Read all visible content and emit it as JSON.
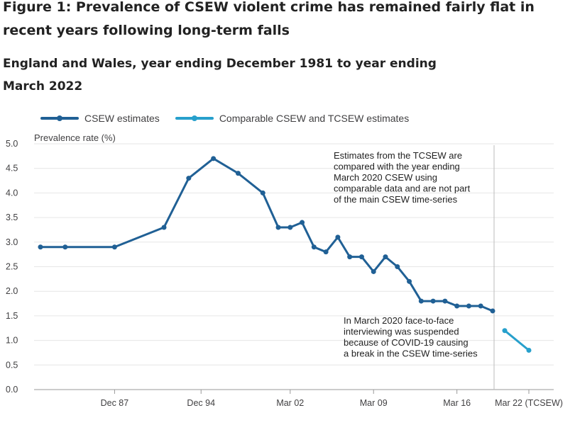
{
  "title": "Figure 1: Prevalence of CSEW violent crime has remained fairly flat in recent years following long-term falls",
  "subtitle": "England and Wales, year ending December 1981 to year ending March 2022",
  "chart_data": {
    "type": "line",
    "ylabel": "Prevalence rate (%)",
    "ylim": [
      0,
      5
    ],
    "y_ticks": [
      "0.0",
      "0.5",
      "1.0",
      "1.5",
      "2.0",
      "2.5",
      "3.0",
      "3.5",
      "4.0",
      "4.5",
      "5.0"
    ],
    "x_ticks": [
      "Dec 87",
      "Dec 94",
      "Mar 02",
      "Mar 09",
      "Mar 16",
      "Mar 22 (TCSEW)"
    ],
    "grid": "horizontal",
    "legend_position": "top-left",
    "series": [
      {
        "name": "CSEW estimates",
        "color": "#206095",
        "points": [
          {
            "x": "Dec 81",
            "y": 2.9
          },
          {
            "x": "Dec 83",
            "y": 2.9
          },
          {
            "x": "Dec 87",
            "y": 2.9
          },
          {
            "x": "Dec 91",
            "y": 3.3
          },
          {
            "x": "Dec 93",
            "y": 4.3
          },
          {
            "x": "Dec 95",
            "y": 4.7
          },
          {
            "x": "Dec 97",
            "y": 4.4
          },
          {
            "x": "Dec 99",
            "y": 4.0
          },
          {
            "x": "Mar 01",
            "y": 3.3
          },
          {
            "x": "Mar 02",
            "y": 3.3
          },
          {
            "x": "Mar 03",
            "y": 3.4
          },
          {
            "x": "Mar 04",
            "y": 2.9
          },
          {
            "x": "Mar 05",
            "y": 2.8
          },
          {
            "x": "Mar 06",
            "y": 3.1
          },
          {
            "x": "Mar 07",
            "y": 2.7
          },
          {
            "x": "Mar 08",
            "y": 2.7
          },
          {
            "x": "Mar 09",
            "y": 2.4
          },
          {
            "x": "Mar 10",
            "y": 2.7
          },
          {
            "x": "Mar 11",
            "y": 2.5
          },
          {
            "x": "Mar 12",
            "y": 2.2
          },
          {
            "x": "Mar 13",
            "y": 1.8
          },
          {
            "x": "Mar 14",
            "y": 1.8
          },
          {
            "x": "Mar 15",
            "y": 1.8
          },
          {
            "x": "Mar 16",
            "y": 1.7
          },
          {
            "x": "Mar 17",
            "y": 1.7
          },
          {
            "x": "Mar 18",
            "y": 1.7
          },
          {
            "x": "Mar 19",
            "y": 1.6
          }
        ]
      },
      {
        "name": "Comparable CSEW and TCSEW estimates",
        "color": "#27a0cc",
        "points": [
          {
            "x": "Mar 20",
            "y": 1.2
          },
          {
            "x": "Mar 22 (TCSEW)",
            "y": 0.8
          }
        ]
      }
    ],
    "annotations": [
      {
        "lines": [
          "Estimates from the TCSEW are",
          "compared with the year ending",
          "March 2020 CSEW using",
          "comparable data and are not part",
          "of the main CSEW time-series"
        ]
      },
      {
        "lines": [
          "In March 2020 face-to-face",
          "interviewing was suspended",
          "because of COVID-19 causing",
          "a break in the CSEW time-series"
        ]
      }
    ]
  }
}
